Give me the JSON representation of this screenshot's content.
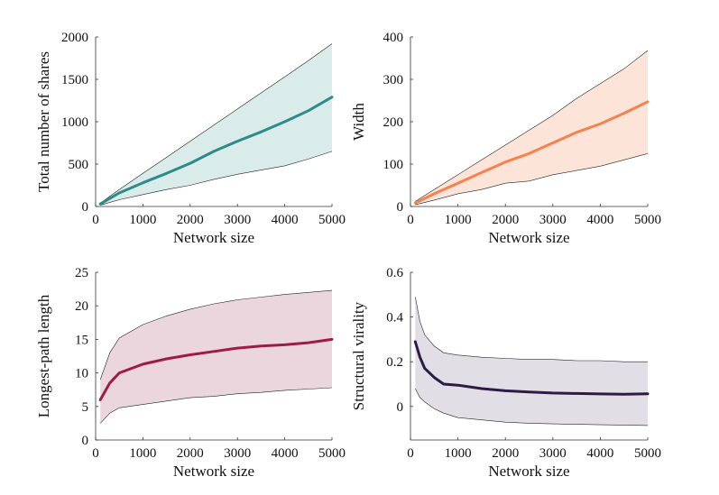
{
  "chart_data": [
    {
      "type": "area",
      "xlabel": "Network size",
      "ylabel": "Total number of shares",
      "xlim": [
        0,
        5000
      ],
      "ylim": [
        0,
        2000
      ],
      "xticks": [
        0,
        1000,
        2000,
        3000,
        4000,
        5000
      ],
      "yticks": [
        0,
        500,
        1000,
        1500,
        2000
      ],
      "color": "#2e8b8b",
      "fill": "#d9ecea",
      "x": [
        100,
        500,
        1000,
        1500,
        2000,
        2500,
        3000,
        3500,
        4000,
        4500,
        5000
      ],
      "mean": [
        30,
        160,
        280,
        390,
        510,
        650,
        770,
        880,
        1000,
        1130,
        1290
      ],
      "upper": [
        40,
        200,
        390,
        580,
        770,
        960,
        1150,
        1340,
        1530,
        1720,
        1920
      ],
      "lower": [
        15,
        80,
        140,
        200,
        250,
        320,
        380,
        430,
        480,
        560,
        650
      ]
    },
    {
      "type": "area",
      "xlabel": "Network size",
      "ylabel": "Width",
      "xlim": [
        0,
        5000
      ],
      "ylim": [
        0,
        400
      ],
      "xticks": [
        0,
        1000,
        2000,
        3000,
        4000,
        5000
      ],
      "yticks": [
        0,
        100,
        200,
        300,
        400
      ],
      "color": "#f5824f",
      "fill": "#fde4d8",
      "x": [
        100,
        500,
        1000,
        1500,
        2000,
        2500,
        3000,
        3500,
        4000,
        4500,
        5000
      ],
      "mean": [
        8,
        30,
        55,
        80,
        105,
        125,
        150,
        175,
        195,
        220,
        247
      ],
      "upper": [
        12,
        40,
        75,
        110,
        145,
        180,
        215,
        255,
        290,
        325,
        368
      ],
      "lower": [
        4,
        15,
        30,
        40,
        55,
        60,
        75,
        85,
        95,
        110,
        125
      ]
    },
    {
      "type": "area",
      "xlabel": "Network size",
      "ylabel": "Longest-path length",
      "xlim": [
        0,
        5000
      ],
      "ylim": [
        0,
        25
      ],
      "xticks": [
        0,
        1000,
        2000,
        3000,
        4000,
        5000
      ],
      "yticks": [
        0,
        5,
        10,
        15,
        20,
        25
      ],
      "color": "#9e1b47",
      "fill": "#ecd6dd",
      "x": [
        100,
        300,
        500,
        1000,
        1500,
        2000,
        2500,
        3000,
        3500,
        4000,
        4500,
        5000
      ],
      "mean": [
        6,
        8.5,
        10,
        11.3,
        12.1,
        12.7,
        13.2,
        13.7,
        14,
        14.2,
        14.5,
        15
      ],
      "upper": [
        9,
        13,
        15.2,
        17.2,
        18.5,
        19.5,
        20.3,
        20.9,
        21.3,
        21.7,
        22,
        22.3
      ],
      "lower": [
        2.5,
        4,
        4.8,
        5.3,
        5.8,
        6.3,
        6.5,
        6.9,
        7.1,
        7.4,
        7.6,
        7.8
      ]
    },
    {
      "type": "area",
      "xlabel": "Network size",
      "ylabel": "Structural virality",
      "xlim": [
        0,
        5000
      ],
      "ylim": [
        -0.15,
        0.6
      ],
      "xticks": [
        0,
        1000,
        2000,
        3000,
        4000,
        5000
      ],
      "yticks": [
        0,
        0.2,
        0.4,
        0.6
      ],
      "color": "#2b1b45",
      "fill": "#e1dee6",
      "x": [
        100,
        200,
        300,
        500,
        700,
        1000,
        1500,
        2000,
        2500,
        3000,
        3500,
        4000,
        4500,
        5000
      ],
      "mean": [
        0.29,
        0.22,
        0.17,
        0.13,
        0.1,
        0.095,
        0.08,
        0.07,
        0.065,
        0.06,
        0.058,
        0.056,
        0.055,
        0.057
      ],
      "upper": [
        0.49,
        0.38,
        0.32,
        0.27,
        0.24,
        0.23,
        0.22,
        0.215,
        0.21,
        0.21,
        0.205,
        0.205,
        0.2,
        0.2
      ],
      "lower": [
        0.08,
        0.04,
        0.02,
        -0.01,
        -0.03,
        -0.05,
        -0.06,
        -0.07,
        -0.075,
        -0.078,
        -0.08,
        -0.082,
        -0.083,
        -0.085
      ]
    }
  ]
}
